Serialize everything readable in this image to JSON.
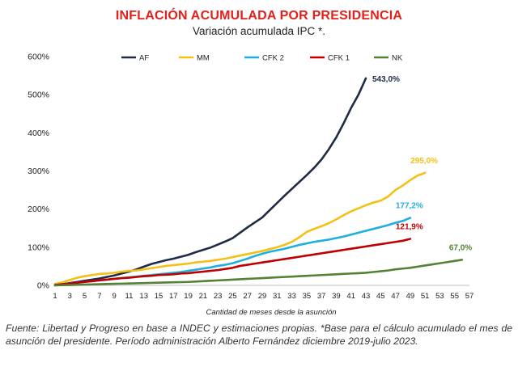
{
  "title": "INFLACIÓN ACUMULADA POR PRESIDENCIA",
  "subtitle": "Variación acumulada IPC *.",
  "source": "Fuente: Libertad y Progreso en base a INDEC y estimaciones propias. *Base para el cálculo acumulado el mes de asunción del presidente. Período administración Alberto Fernández diciembre 2019-julio 2023.",
  "chart_data": {
    "type": "line",
    "title": "INFLACIÓN ACUMULADA POR PRESIDENCIA",
    "subtitle": "Variación acumulada IPC *.",
    "xlabel": "Cantidad de meses desde la asunción",
    "ylabel": "",
    "xlim": [
      1,
      57
    ],
    "ylim": [
      0,
      600
    ],
    "xticks": [
      1,
      3,
      5,
      7,
      9,
      11,
      13,
      15,
      17,
      19,
      21,
      23,
      25,
      27,
      29,
      31,
      33,
      35,
      37,
      39,
      41,
      43,
      45,
      47,
      49,
      51,
      53,
      55,
      57
    ],
    "yticks": [
      0,
      100,
      200,
      300,
      400,
      500,
      600
    ],
    "ytick_labels": [
      "0%",
      "100%",
      "200%",
      "300%",
      "400%",
      "500%",
      "600%"
    ],
    "grid": false,
    "legend_position": "top",
    "series": [
      {
        "name": "AF",
        "color": "#1f2a44",
        "end_label": "543,0%",
        "values": [
          0,
          3,
          6,
          9,
          12,
          15,
          18,
          22,
          26,
          31,
          36,
          42,
          49,
          56,
          61,
          66,
          70,
          75,
          80,
          87,
          93,
          99,
          107,
          115,
          124,
          138,
          152,
          165,
          178,
          197,
          216,
          235,
          253,
          271,
          289,
          308,
          330,
          357,
          388,
          425,
          465,
          500,
          543
        ]
      },
      {
        "name": "MM",
        "color": "#f5c016",
        "end_label": "295,0%",
        "values": [
          4,
          8,
          14,
          20,
          24,
          27,
          30,
          31,
          33,
          36,
          38,
          39,
          42,
          45,
          48,
          51,
          53,
          55,
          57,
          60,
          62,
          64,
          67,
          70,
          74,
          78,
          82,
          86,
          90,
          95,
          100,
          106,
          114,
          126,
          140,
          148,
          155,
          163,
          173,
          184,
          194,
          202,
          210,
          217,
          222,
          233,
          250,
          262,
          276,
          288,
          295
        ]
      },
      {
        "name": "CFK 2",
        "color": "#1eaee0",
        "end_label": "177,2%",
        "values": [
          1,
          3,
          5,
          7,
          9,
          11,
          13,
          15,
          17,
          19,
          21,
          23,
          25,
          27,
          29,
          31,
          33,
          35,
          38,
          41,
          44,
          47,
          51,
          54,
          58,
          64,
          70,
          77,
          83,
          88,
          92,
          96,
          101,
          106,
          110,
          114,
          117,
          120,
          124,
          128,
          133,
          138,
          143,
          148,
          153,
          158,
          164,
          169,
          177.2
        ]
      },
      {
        "name": "CFK 1",
        "color": "#c00000",
        "end_label": "121,9%",
        "values": [
          1,
          3,
          5,
          7,
          9,
          11,
          13,
          15,
          17,
          19,
          20,
          22,
          24,
          25,
          27,
          28,
          29,
          31,
          32,
          34,
          36,
          38,
          40,
          43,
          46,
          51,
          54,
          57,
          60,
          63,
          66,
          69,
          72,
          75,
          78,
          81,
          84,
          87,
          90,
          93,
          96,
          99,
          102,
          105,
          108,
          111,
          114,
          117,
          121.9
        ]
      },
      {
        "name": "NK",
        "color": "#538135",
        "end_label": "67,0%",
        "values": [
          0,
          0.5,
          1,
          1.5,
          2,
          2.5,
          3,
          3.5,
          4,
          4.5,
          5,
          5.5,
          6,
          6.5,
          7,
          7.5,
          8,
          8.5,
          9,
          10,
          11,
          12,
          13,
          14,
          15,
          16,
          17,
          18,
          19,
          20,
          21,
          22,
          23,
          24,
          25,
          26,
          27,
          28,
          29,
          30,
          31,
          32,
          33,
          35,
          37,
          39,
          42,
          44,
          46,
          49,
          52,
          55,
          58,
          61,
          64,
          67
        ]
      }
    ]
  }
}
